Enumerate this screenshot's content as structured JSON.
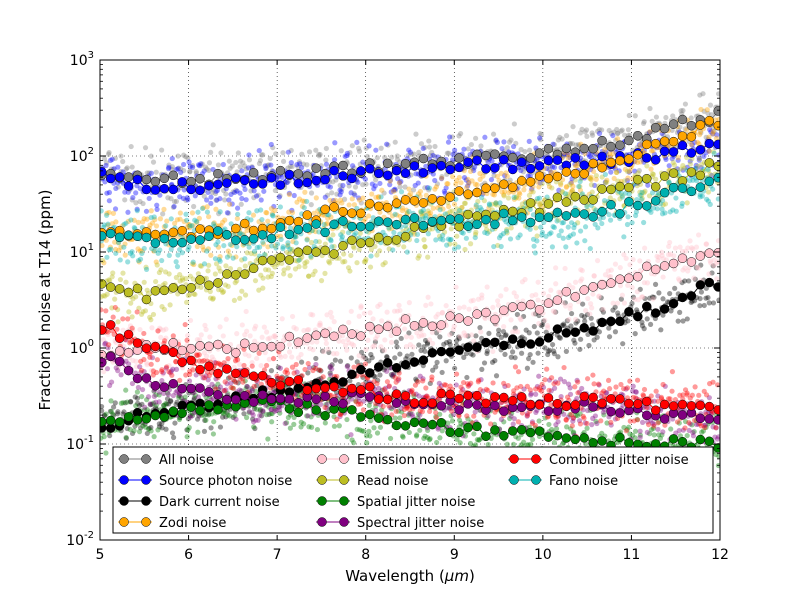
{
  "chart_data": {
    "type": "scatter",
    "title": "",
    "xlabel_text": "Wavelength (",
    "xlabel_unit": "μm",
    "xlabel_close": ")",
    "ylabel": "Fractional noise at T14 (ppm)",
    "xlim": [
      5,
      12
    ],
    "ylim": [
      0.01,
      1000
    ],
    "yscale": "log",
    "grid": true,
    "legend_placement": "bottom",
    "x_ticks": [
      "5",
      "6",
      "7",
      "8",
      "9",
      "10",
      "11",
      "12"
    ],
    "y_ticks": [
      {
        "base": "10",
        "exp": "-2"
      },
      {
        "base": "10",
        "exp": "-1"
      },
      {
        "base": "10",
        "exp": "0"
      },
      {
        "base": "10",
        "exp": "1"
      },
      {
        "base": "10",
        "exp": "2"
      },
      {
        "base": "10",
        "exp": "3"
      }
    ],
    "x": [
      5.0,
      5.5,
      6.0,
      6.5,
      7.0,
      7.5,
      8.0,
      8.5,
      9.0,
      9.5,
      10.0,
      10.5,
      11.0,
      11.5,
      12.0
    ],
    "series": [
      {
        "name": "All noise",
        "color": "#808080",
        "values": [
          70,
          55,
          55,
          60,
          65,
          70,
          75,
          80,
          90,
          95,
          110,
          120,
          150,
          200,
          270
        ]
      },
      {
        "name": "Source photon noise",
        "color": "#0000ff",
        "values": [
          60,
          50,
          47,
          52,
          55,
          62,
          68,
          72,
          80,
          80,
          85,
          85,
          95,
          110,
          140
        ]
      },
      {
        "name": "Dark current noise",
        "color": "#000000",
        "values": [
          0.15,
          0.2,
          0.23,
          0.28,
          0.35,
          0.45,
          0.55,
          0.7,
          0.9,
          1.1,
          1.3,
          1.6,
          2.2,
          3.0,
          5.0
        ]
      },
      {
        "name": "Zodi noise",
        "color": "#ffa500",
        "values": [
          15,
          16,
          16,
          17,
          20,
          25,
          28,
          32,
          38,
          45,
          55,
          70,
          100,
          150,
          240
        ]
      },
      {
        "name": "Emission noise",
        "color": "#ffc0cb",
        "values": [
          0.9,
          1.0,
          1.0,
          1.0,
          1.1,
          1.3,
          1.5,
          1.8,
          1.9,
          2.2,
          2.8,
          4.0,
          5.5,
          8.0,
          10
        ]
      },
      {
        "name": "Read noise",
        "color": "#bcbd22",
        "values": [
          4.5,
          3.5,
          4.5,
          6.0,
          8.0,
          10,
          13,
          16,
          20,
          25,
          30,
          38,
          48,
          60,
          80
        ]
      },
      {
        "name": "Spatial jitter noise",
        "color": "#008000",
        "values": [
          0.15,
          0.2,
          0.22,
          0.25,
          0.25,
          0.22,
          0.2,
          0.17,
          0.15,
          0.13,
          0.12,
          0.11,
          0.1,
          0.1,
          0.1
        ]
      },
      {
        "name": "Spectral jitter noise",
        "color": "#800080",
        "values": [
          0.8,
          0.5,
          0.35,
          0.3,
          0.3,
          0.3,
          0.3,
          0.28,
          0.25,
          0.25,
          0.25,
          0.25,
          0.22,
          0.2,
          0.2
        ]
      },
      {
        "name": "Combined jitter noise",
        "color": "#ff0000",
        "values": [
          1.8,
          1.0,
          0.7,
          0.55,
          0.45,
          0.4,
          0.35,
          0.3,
          0.3,
          0.28,
          0.28,
          0.28,
          0.25,
          0.25,
          0.25
        ]
      },
      {
        "name": "Fano noise",
        "color": "#00b0b0",
        "values": [
          14,
          14,
          14,
          15,
          16,
          18,
          20,
          20,
          21,
          22,
          22,
          25,
          30,
          45,
          55
        ]
      }
    ]
  }
}
